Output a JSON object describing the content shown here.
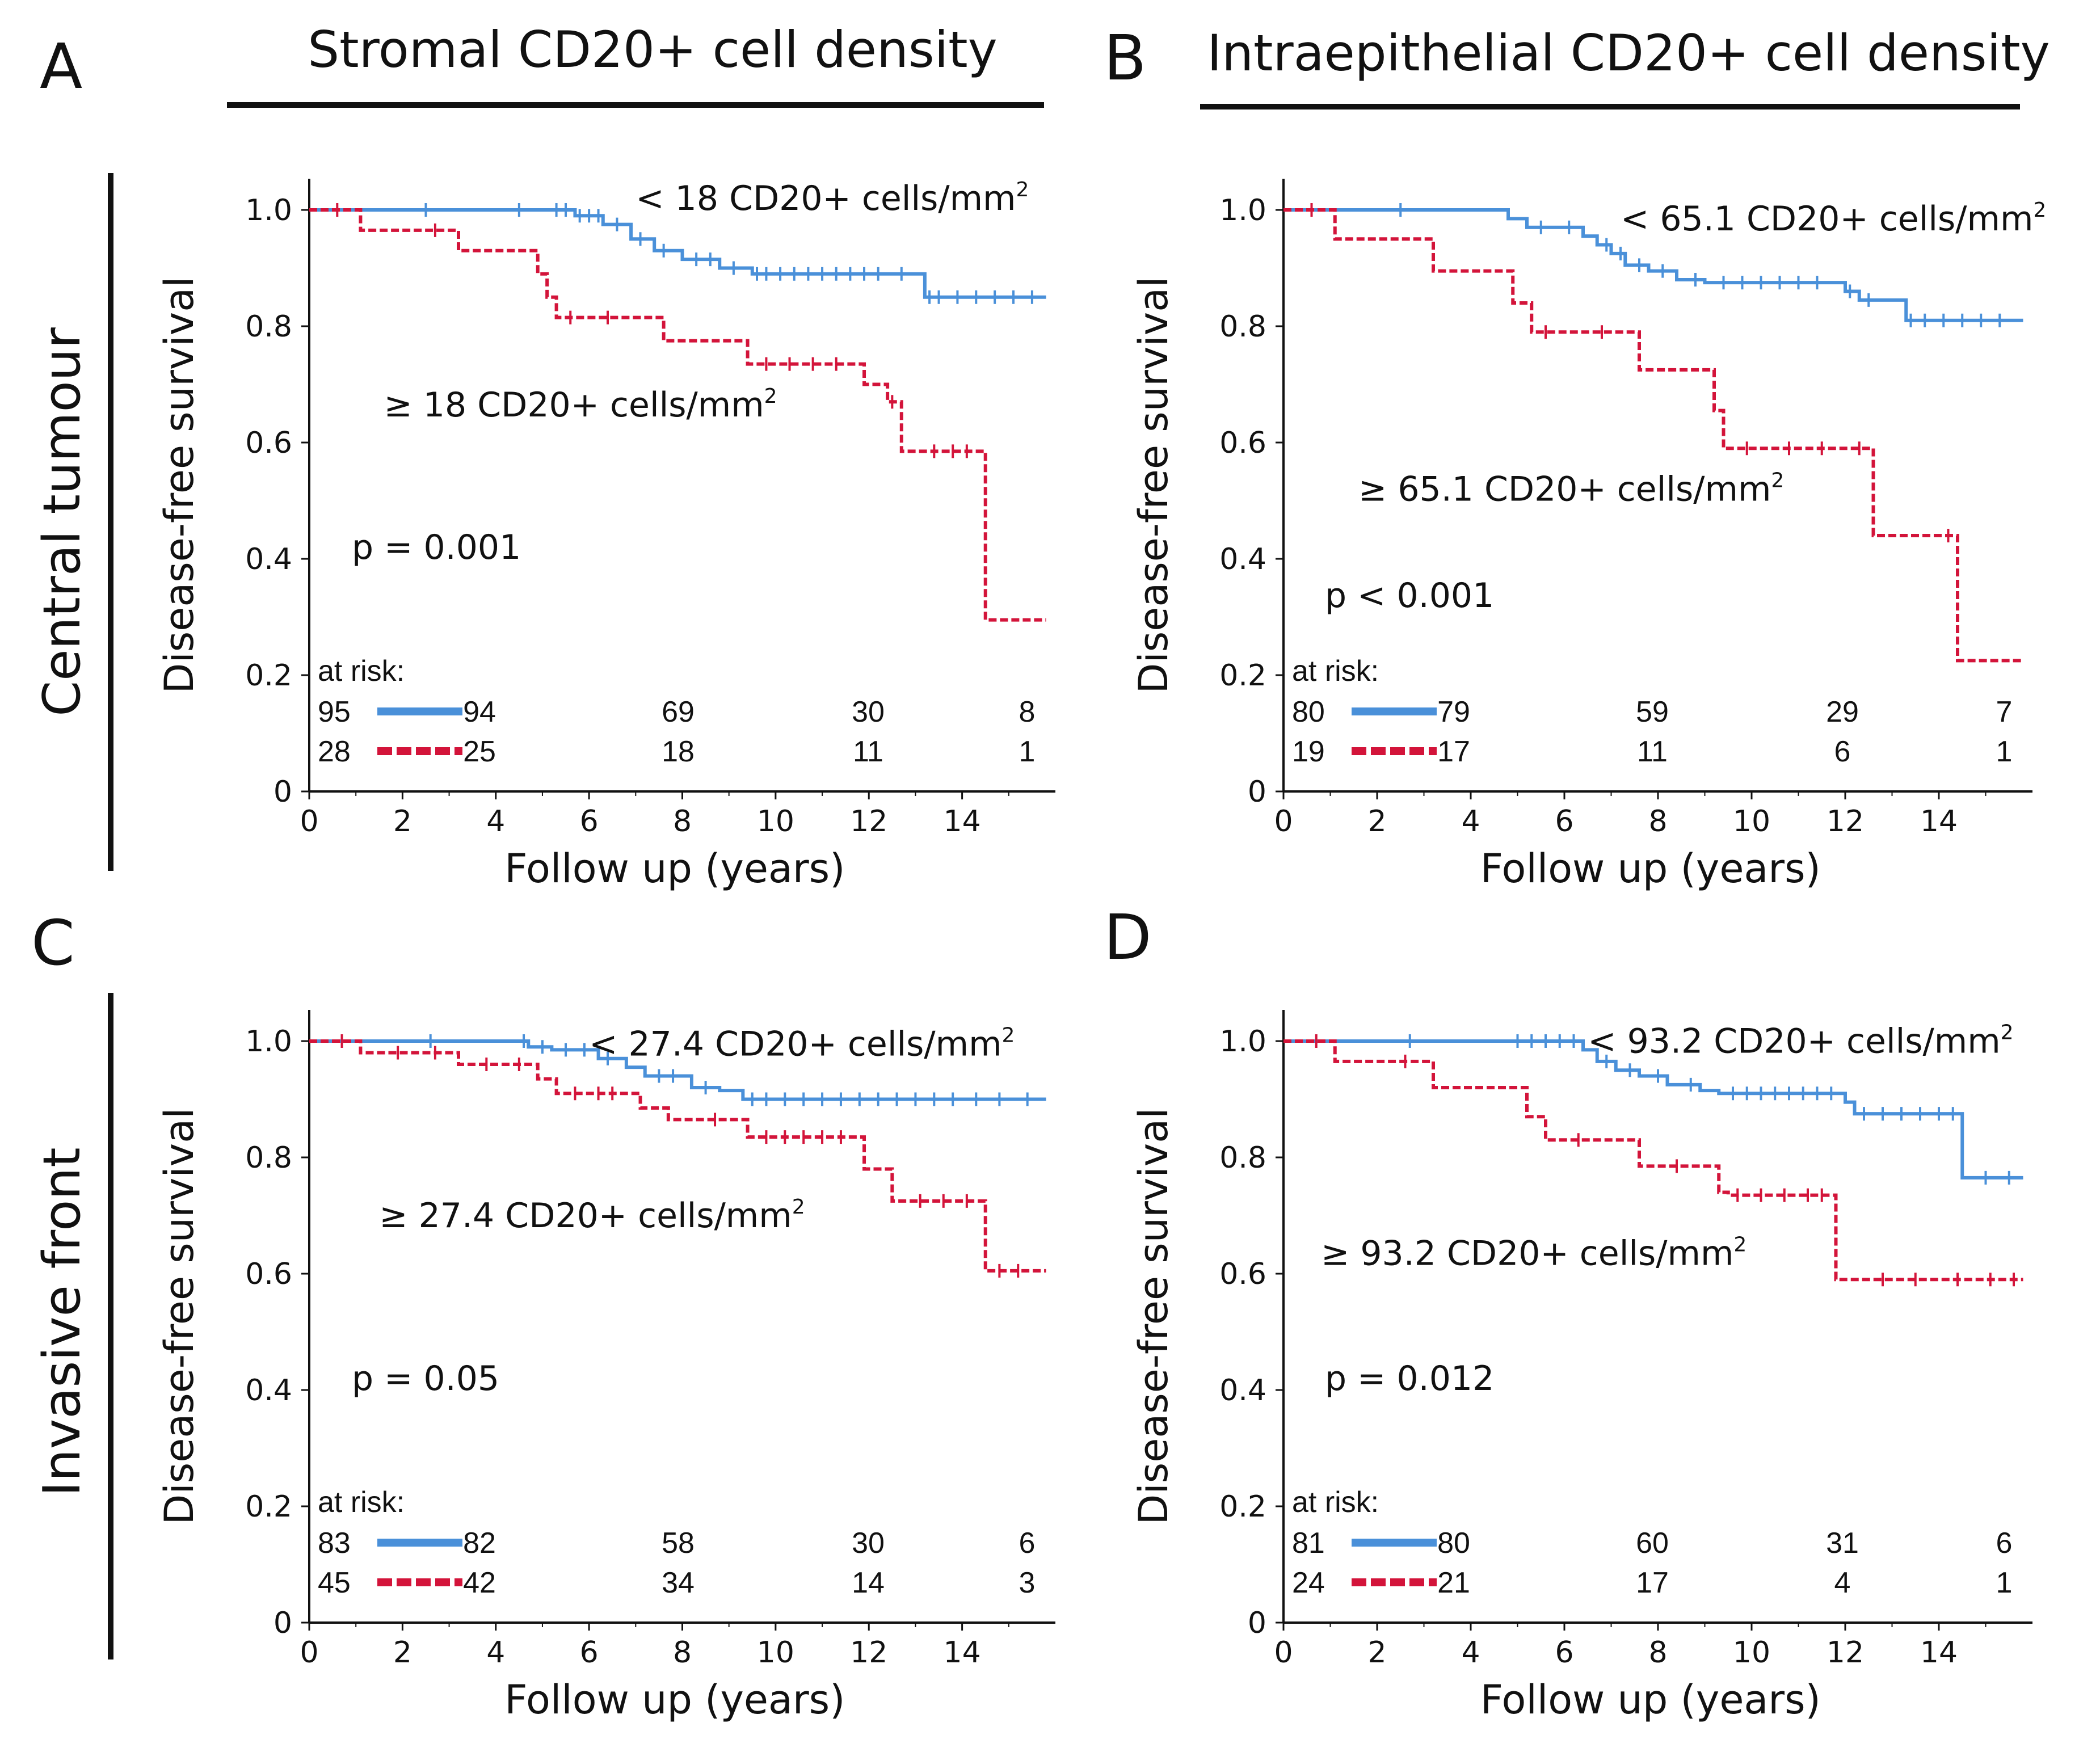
{
  "figure": {
    "columns": [
      {
        "letter": "A",
        "title": "Stromal CD20+ cell density"
      },
      {
        "letter": "B",
        "title": "Intraepithelial CD20+ cell density"
      }
    ],
    "rows": [
      {
        "title": "Central tumour"
      },
      {
        "title": "Invasive front"
      }
    ],
    "lower_letters": [
      "C",
      "D"
    ]
  },
  "colors": {
    "low": "#4a90d9",
    "high": "#d3143a",
    "text": "#111111"
  },
  "chart_data": [
    {
      "type": "line",
      "panel": "A",
      "xlabel": "Follow up (years)",
      "ylabel": "Disease-free survival",
      "xlim": [
        0,
        16
      ],
      "ylim": [
        0,
        1
      ],
      "xticks": [
        "0",
        "2",
        "4",
        "6",
        "8",
        "10",
        "12",
        "14"
      ],
      "yticks": [
        "0",
        "0.2",
        "0.4",
        "0.6",
        "0.8",
        "1.0"
      ],
      "p_value": "p = 0.001",
      "at_risk_label": "at risk:",
      "series": [
        {
          "name": "< 18 CD20+ cells/mm²",
          "label_text": "< 18 CD20+ cells/mm",
          "color": "#4a90d9",
          "dashed": false,
          "label_anchor": [
            7.0,
            1.0
          ],
          "steps": [
            [
              0,
              1.0
            ],
            [
              5.7,
              0.99
            ],
            [
              6.3,
              0.975
            ],
            [
              6.9,
              0.95
            ],
            [
              7.4,
              0.93
            ],
            [
              8.0,
              0.915
            ],
            [
              8.8,
              0.9
            ],
            [
              9.5,
              0.89
            ],
            [
              13.2,
              0.85
            ],
            [
              15.8,
              0.85
            ]
          ],
          "censors": [
            2.5,
            4.5,
            5.3,
            5.5,
            5.8,
            6.0,
            6.2,
            6.6,
            7.1,
            7.6,
            8.3,
            8.6,
            9.1,
            9.6,
            9.8,
            10.1,
            10.4,
            10.7,
            11.0,
            11.3,
            11.6,
            11.9,
            12.2,
            12.7,
            13.3,
            13.5,
            13.9,
            14.3,
            14.7,
            15.1,
            15.5
          ],
          "at_risk": [
            "95",
            "94",
            "69",
            "30",
            "8"
          ]
        },
        {
          "name": "≥ 18 CD20+ cells/mm²",
          "label_text": "≥ 18 CD20+ cells/mm",
          "color": "#d3143a",
          "dashed": true,
          "label_anchor": [
            1.6,
            0.645
          ],
          "steps": [
            [
              0,
              1.0
            ],
            [
              1.1,
              0.965
            ],
            [
              3.2,
              0.93
            ],
            [
              4.9,
              0.89
            ],
            [
              5.1,
              0.85
            ],
            [
              5.3,
              0.815
            ],
            [
              7.6,
              0.775
            ],
            [
              9.4,
              0.735
            ],
            [
              11.9,
              0.7
            ],
            [
              12.4,
              0.67
            ],
            [
              12.7,
              0.585
            ],
            [
              14.5,
              0.295
            ],
            [
              15.8,
              0.295
            ]
          ],
          "censors": [
            0.6,
            2.7,
            5.6,
            6.4,
            9.8,
            10.3,
            10.8,
            11.3,
            12.5,
            13.4,
            13.8,
            14.1
          ],
          "at_risk": [
            "28",
            "25",
            "18",
            "11",
            "1"
          ]
        }
      ],
      "at_risk_times": [
        "0",
        "4",
        "8",
        "12",
        "15.5"
      ]
    },
    {
      "type": "line",
      "panel": "B",
      "xlabel": "Follow up (years)",
      "ylabel": "Disease-free survival",
      "xlim": [
        0,
        16
      ],
      "ylim": [
        0,
        1
      ],
      "xticks": [
        "0",
        "2",
        "4",
        "6",
        "8",
        "10",
        "12",
        "14"
      ],
      "yticks": [
        "0",
        "0.2",
        "0.4",
        "0.6",
        "0.8",
        "1.0"
      ],
      "p_value": "p < 0.001",
      "at_risk_label": "at risk:",
      "series": [
        {
          "name": "< 65.1 CD20+ cells/mm²",
          "label_text": "< 65.1 CD20+ cells/mm",
          "color": "#4a90d9",
          "dashed": false,
          "label_anchor": [
            7.2,
            0.965
          ],
          "steps": [
            [
              0,
              1.0
            ],
            [
              4.8,
              0.985
            ],
            [
              5.2,
              0.97
            ],
            [
              6.4,
              0.955
            ],
            [
              6.7,
              0.94
            ],
            [
              7.0,
              0.925
            ],
            [
              7.3,
              0.905
            ],
            [
              7.8,
              0.895
            ],
            [
              8.4,
              0.88
            ],
            [
              9.0,
              0.875
            ],
            [
              12.0,
              0.86
            ],
            [
              12.3,
              0.845
            ],
            [
              13.3,
              0.81
            ],
            [
              15.8,
              0.81
            ]
          ],
          "censors": [
            2.5,
            5.5,
            6.1,
            6.9,
            7.2,
            7.6,
            8.1,
            8.8,
            9.4,
            9.8,
            10.2,
            10.6,
            11.0,
            11.4,
            12.1,
            12.5,
            13.4,
            13.7,
            14.1,
            14.5,
            14.9,
            15.3
          ],
          "at_risk": [
            "80",
            "79",
            "59",
            "29",
            "7"
          ]
        },
        {
          "name": "≥ 65.1 CD20+ cells/mm²",
          "label_text": "≥ 65.1 CD20+ cells/mm",
          "color": "#d3143a",
          "dashed": true,
          "label_anchor": [
            1.6,
            0.5
          ],
          "steps": [
            [
              0,
              1.0
            ],
            [
              1.1,
              0.95
            ],
            [
              3.2,
              0.895
            ],
            [
              4.9,
              0.84
            ],
            [
              5.3,
              0.79
            ],
            [
              7.6,
              0.725
            ],
            [
              9.2,
              0.655
            ],
            [
              9.4,
              0.59
            ],
            [
              12.6,
              0.44
            ],
            [
              14.4,
              0.225
            ],
            [
              15.8,
              0.225
            ]
          ],
          "censors": [
            0.6,
            5.6,
            6.8,
            9.9,
            10.8,
            11.5,
            12.3,
            14.2
          ],
          "at_risk": [
            "19",
            "17",
            "11",
            "6",
            "1"
          ]
        }
      ],
      "at_risk_times": [
        "0",
        "4",
        "8",
        "12",
        "15.5"
      ]
    },
    {
      "type": "line",
      "panel": "C",
      "xlabel": "Follow up (years)",
      "ylabel": "Disease-free survival",
      "xlim": [
        0,
        16
      ],
      "ylim": [
        0,
        1
      ],
      "xticks": [
        "0",
        "2",
        "4",
        "6",
        "8",
        "10",
        "12",
        "14"
      ],
      "yticks": [
        "0",
        "0.2",
        "0.4",
        "0.6",
        "0.8",
        "1.0"
      ],
      "p_value": "p = 0.05",
      "at_risk_label": "at risk:",
      "series": [
        {
          "name": "< 27.4 CD20+ cells/mm²",
          "label_text": "< 27.4 CD20+ cells/mm",
          "color": "#4a90d9",
          "dashed": false,
          "label_anchor": [
            6.0,
            0.975
          ],
          "steps": [
            [
              0,
              1.0
            ],
            [
              4.7,
              0.99
            ],
            [
              5.2,
              0.985
            ],
            [
              6.2,
              0.97
            ],
            [
              6.8,
              0.955
            ],
            [
              7.2,
              0.94
            ],
            [
              8.2,
              0.92
            ],
            [
              8.8,
              0.915
            ],
            [
              9.3,
              0.9
            ],
            [
              15.8,
              0.9
            ]
          ],
          "censors": [
            2.6,
            4.6,
            5.0,
            5.5,
            5.9,
            6.4,
            7.5,
            7.8,
            8.5,
            9.5,
            9.8,
            10.2,
            10.6,
            11.0,
            11.4,
            11.8,
            12.2,
            12.6,
            13.0,
            13.4,
            13.8,
            14.3,
            14.8,
            15.4
          ],
          "at_risk": [
            "83",
            "82",
            "58",
            "30",
            "6"
          ]
        },
        {
          "name": "≥ 27.4 CD20+ cells/mm²",
          "label_text": "≥ 27.4 CD20+ cells/mm",
          "color": "#d3143a",
          "dashed": true,
          "label_anchor": [
            1.5,
            0.68
          ],
          "steps": [
            [
              0,
              1.0
            ],
            [
              1.1,
              0.98
            ],
            [
              3.2,
              0.96
            ],
            [
              4.9,
              0.935
            ],
            [
              5.3,
              0.91
            ],
            [
              7.1,
              0.885
            ],
            [
              7.7,
              0.865
            ],
            [
              9.4,
              0.835
            ],
            [
              11.9,
              0.78
            ],
            [
              12.5,
              0.725
            ],
            [
              14.5,
              0.605
            ],
            [
              15.8,
              0.605
            ]
          ],
          "censors": [
            0.7,
            1.9,
            2.7,
            3.8,
            4.5,
            5.7,
            6.2,
            6.5,
            8.7,
            9.8,
            10.2,
            10.6,
            11.0,
            11.4,
            13.1,
            13.6,
            14.1,
            14.8,
            15.2
          ],
          "at_risk": [
            "45",
            "42",
            "34",
            "14",
            "3"
          ]
        }
      ],
      "at_risk_times": [
        "0",
        "4",
        "8",
        "12",
        "15.5"
      ]
    },
    {
      "type": "line",
      "panel": "D",
      "xlabel": "Follow up (years)",
      "ylabel": "Disease-free survival",
      "xlim": [
        0,
        16
      ],
      "ylim": [
        0,
        1
      ],
      "xticks": [
        "0",
        "2",
        "4",
        "6",
        "8",
        "10",
        "12",
        "14"
      ],
      "yticks": [
        "0",
        "0.2",
        "0.4",
        "0.6",
        "0.8",
        "1.0"
      ],
      "p_value": "p = 0.012",
      "at_risk_label": "at risk:",
      "series": [
        {
          "name": "< 93.2 CD20+ cells/mm²",
          "label_text": "< 93.2 CD20+ cells/mm",
          "color": "#4a90d9",
          "dashed": false,
          "label_anchor": [
            6.5,
            0.98
          ],
          "steps": [
            [
              0,
              1.0
            ],
            [
              6.4,
              0.985
            ],
            [
              6.7,
              0.965
            ],
            [
              7.1,
              0.95
            ],
            [
              7.6,
              0.94
            ],
            [
              8.2,
              0.925
            ],
            [
              8.9,
              0.915
            ],
            [
              9.3,
              0.91
            ],
            [
              12.0,
              0.895
            ],
            [
              12.2,
              0.875
            ],
            [
              14.5,
              0.765
            ],
            [
              15.8,
              0.765
            ]
          ],
          "censors": [
            2.7,
            5.0,
            5.3,
            5.6,
            5.9,
            6.2,
            6.9,
            7.4,
            8.0,
            8.7,
            9.6,
            9.9,
            10.2,
            10.5,
            10.8,
            11.1,
            11.4,
            11.7,
            12.4,
            12.8,
            13.2,
            13.6,
            14.0,
            14.3,
            15.0,
            15.5
          ],
          "at_risk": [
            "81",
            "80",
            "60",
            "31",
            "6"
          ]
        },
        {
          "name": "≥ 93.2 CD20+ cells/mm²",
          "label_text": "≥ 93.2 CD20+ cells/mm",
          "color": "#d3143a",
          "dashed": true,
          "label_anchor": [
            0.8,
            0.615
          ],
          "steps": [
            [
              0,
              1.0
            ],
            [
              1.1,
              0.965
            ],
            [
              3.2,
              0.92
            ],
            [
              5.2,
              0.87
            ],
            [
              5.6,
              0.83
            ],
            [
              7.6,
              0.785
            ],
            [
              9.3,
              0.74
            ],
            [
              9.5,
              0.735
            ],
            [
              11.8,
              0.59
            ],
            [
              15.8,
              0.59
            ]
          ],
          "censors": [
            0.7,
            2.6,
            6.3,
            8.4,
            9.7,
            10.2,
            10.7,
            11.2,
            11.5,
            12.8,
            13.5,
            14.4,
            15.1,
            15.6
          ],
          "at_risk": [
            "24",
            "21",
            "17",
            "4",
            "1"
          ]
        }
      ],
      "at_risk_times": [
        "0",
        "4",
        "8",
        "12",
        "15.5"
      ]
    }
  ]
}
